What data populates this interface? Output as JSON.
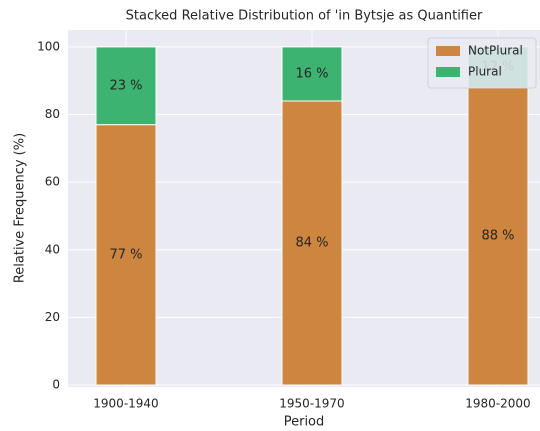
{
  "chart_data": {
    "type": "stacked_bar",
    "title": "Stacked Relative Distribution of 'in Bytsje as Quantifier",
    "xlabel": "Period",
    "ylabel": "Relative Frequency (%)",
    "categories": [
      "1900-1940",
      "1950-1970",
      "1980-2000"
    ],
    "series": [
      {
        "name": "NotPlural",
        "color": "#cd853f",
        "values": [
          77,
          84,
          88
        ],
        "value_labels": [
          "77 %",
          "84 %",
          "88 %"
        ]
      },
      {
        "name": "Plural",
        "color": "#3cb371",
        "values": [
          23,
          16,
          12
        ],
        "value_labels": [
          "23 %",
          "16 %",
          "12 %"
        ]
      }
    ],
    "ylim": [
      0,
      105
    ],
    "yticks": [
      0,
      20,
      40,
      60,
      80,
      100
    ],
    "grid": true,
    "legend": "upper right"
  }
}
